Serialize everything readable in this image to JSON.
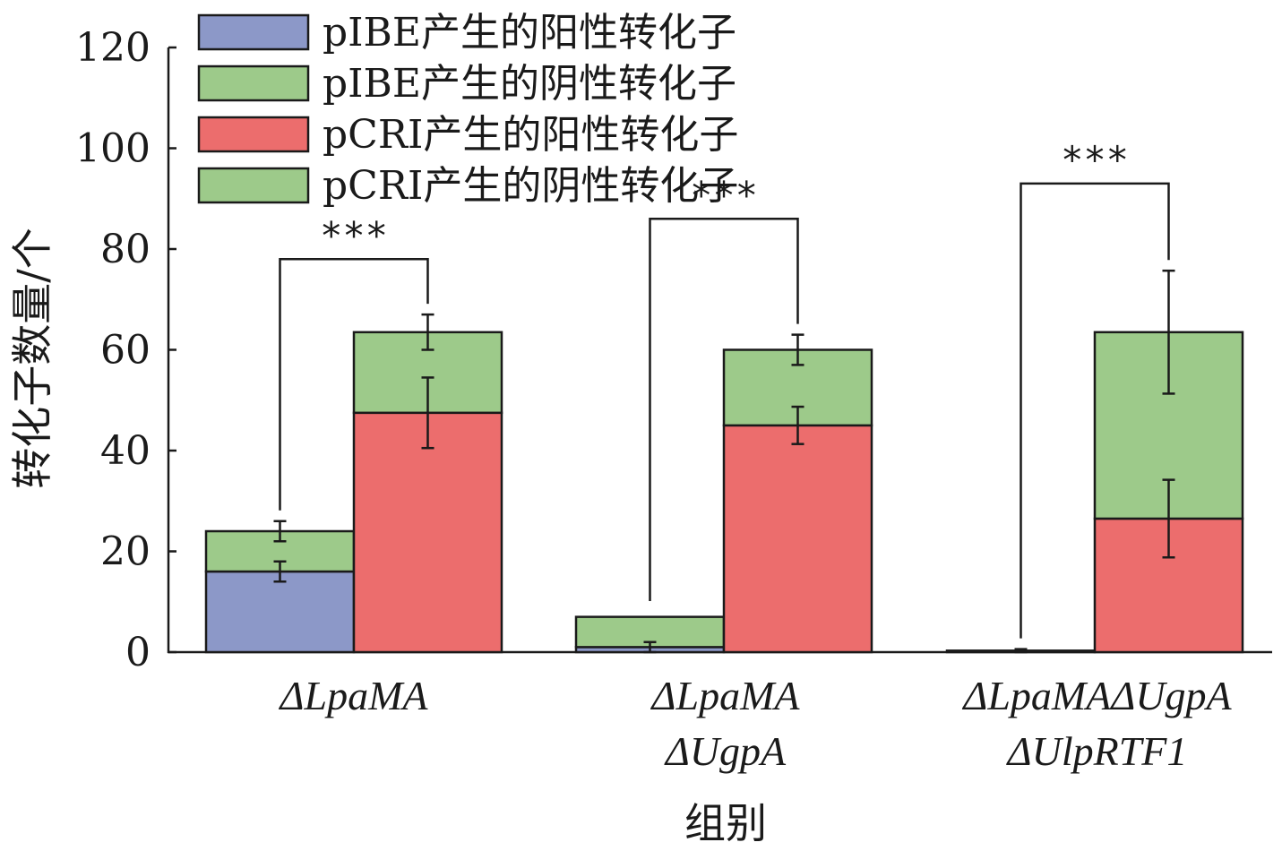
{
  "chart_data": {
    "type": "bar",
    "stacked": true,
    "title": "",
    "xlabel": "组别",
    "ylabel": "转化子数量/个",
    "ylim": [
      0,
      120
    ],
    "yticks": [
      0,
      20,
      40,
      60,
      80,
      100,
      120
    ],
    "grid": false,
    "legend_position": "top-left",
    "groups": [
      {
        "label_lines": [
          "ΔLpaMA"
        ]
      },
      {
        "label_lines": [
          "ΔLpaMA",
          "ΔUgpA"
        ]
      },
      {
        "label_lines": [
          "ΔLpaMAΔUgpA",
          "ΔUlpRTF1"
        ]
      }
    ],
    "series": [
      {
        "name": "pIBE产生的阳性转化子",
        "plasmid": "pIBE",
        "color": "#8c98c8",
        "values": [
          16,
          1,
          0.3
        ],
        "errors": [
          2,
          1,
          0.3
        ]
      },
      {
        "name": "pIBE产生的阴性转化子",
        "plasmid": "pIBE",
        "color": "#9dca8a",
        "values": [
          8,
          6,
          0
        ],
        "errors": [
          2,
          0,
          0
        ]
      },
      {
        "name": "pCRI产生的阳性转化子",
        "plasmid": "pCRI",
        "color": "#ec6d6d",
        "values": [
          47.5,
          45,
          26.5
        ],
        "errors": [
          7,
          3.7,
          7.7
        ]
      },
      {
        "name": "pCRI产生的阴性转化子",
        "plasmid": "pCRI",
        "color": "#9dca8a",
        "values": [
          16,
          15,
          37
        ],
        "errors": [
          3.5,
          3,
          12.2
        ]
      }
    ],
    "significance": [
      {
        "group": 0,
        "label": "***",
        "level": 78
      },
      {
        "group": 1,
        "label": "***",
        "level": 86
      },
      {
        "group": 2,
        "label": "***",
        "level": 93
      }
    ]
  }
}
